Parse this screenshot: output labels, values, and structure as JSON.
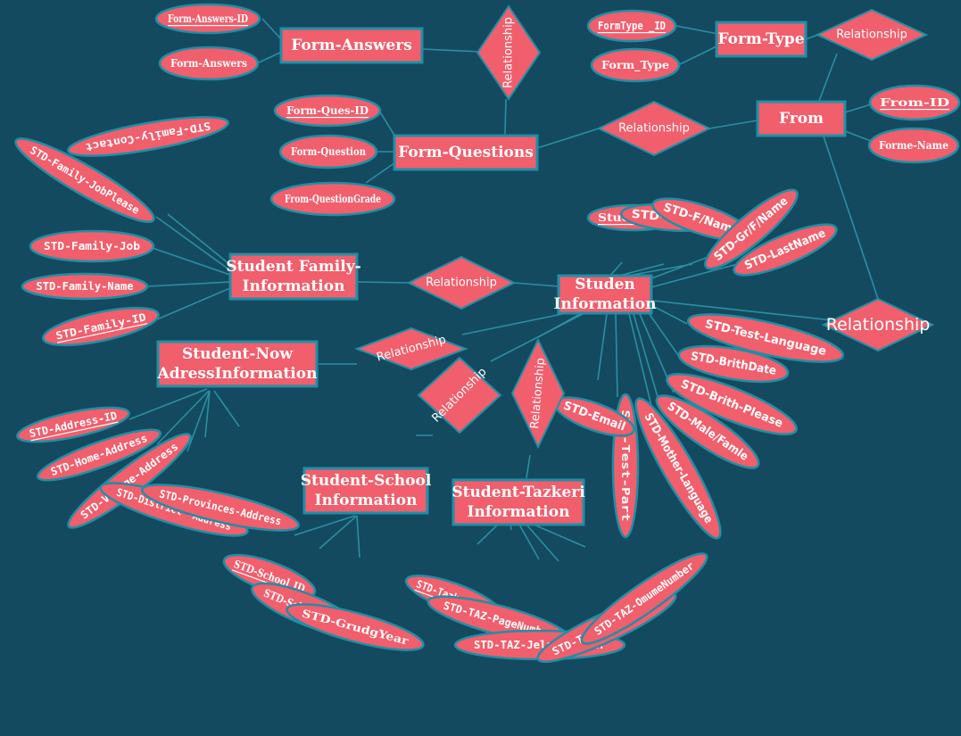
{
  "entities": [
    {
      "id": "form_answers",
      "label": "Form-Answers"
    },
    {
      "id": "form_type",
      "label": "Form-Type"
    },
    {
      "id": "from",
      "label": "From"
    },
    {
      "id": "form_questions",
      "label": "Form-Questions"
    },
    {
      "id": "student_family",
      "label": "Student Family-\nInformation"
    },
    {
      "id": "studen_info",
      "label": "Studen\nInformation"
    },
    {
      "id": "student_now",
      "label": "Student-Now\nAdressInformation"
    },
    {
      "id": "student_school",
      "label": "Student-School\nInformation"
    },
    {
      "id": "student_tazkeri",
      "label": "Student-Tazkeri\nInformation"
    }
  ],
  "attributes": [
    {
      "id": "form_answers_id",
      "label": "Form-Answers-ID",
      "key": true,
      "entity": "form_answers"
    },
    {
      "id": "form_answers_a",
      "label": "Form-Answers",
      "key": false,
      "entity": "form_answers"
    },
    {
      "id": "formtype_id",
      "label": "FormType _ID",
      "key": true,
      "entity": "form_type"
    },
    {
      "id": "form_type_a",
      "label": "Form_Type",
      "key": false,
      "entity": "form_type"
    },
    {
      "id": "from_id",
      "label": "From-ID",
      "key": true,
      "entity": "from"
    },
    {
      "id": "forme_name",
      "label": "Forme-Name",
      "key": false,
      "entity": "from"
    },
    {
      "id": "form_ques_id",
      "label": "Form-Ques-ID",
      "key": true,
      "entity": "form_questions"
    },
    {
      "id": "form_question",
      "label": "Form-Question",
      "key": false,
      "entity": "form_questions"
    },
    {
      "id": "from_questiongrade",
      "label": "From-QuestionGrade",
      "key": false,
      "entity": "form_questions"
    },
    {
      "id": "std_family_contact",
      "label": "STD-Family-Contact",
      "key": false,
      "entity": "student_family"
    },
    {
      "id": "std_family_jobplease",
      "label": "STD-Family-JobPlease",
      "key": false,
      "entity": "student_family"
    },
    {
      "id": "std_family_job",
      "label": "STD-Family-Job",
      "key": false,
      "entity": "student_family"
    },
    {
      "id": "std_family_name",
      "label": "STD-Family-Name",
      "key": false,
      "entity": "student_family"
    },
    {
      "id": "std_family_id",
      "label": "STD-Family-ID",
      "key": true,
      "entity": "student_family"
    },
    {
      "id": "studen_id",
      "label": "Studen-ID",
      "key": true,
      "entity": "studen_info"
    },
    {
      "id": "std_name",
      "label": "STD-Name",
      "key": false,
      "entity": "studen_info"
    },
    {
      "id": "std_f_name",
      "label": "STD-F/Name",
      "key": false,
      "entity": "studen_info"
    },
    {
      "id": "std_gr_f_name",
      "label": "STD-Gr/F/Name",
      "key": false,
      "entity": "studen_info"
    },
    {
      "id": "std_lastname",
      "label": "STD-LastName",
      "key": false,
      "entity": "studen_info"
    },
    {
      "id": "std_test_language",
      "label": "STD-Test-Language",
      "key": false,
      "entity": "studen_info"
    },
    {
      "id": "std_brithdate",
      "label": "STD-BrithDate",
      "key": false,
      "entity": "studen_info"
    },
    {
      "id": "std_brith_please",
      "label": "STD-Brith-Please",
      "key": false,
      "entity": "studen_info"
    },
    {
      "id": "std_male_famle",
      "label": "STD-Male/Famle",
      "key": false,
      "entity": "studen_info"
    },
    {
      "id": "std_mother_language",
      "label": "STD-Mother-Language",
      "key": false,
      "entity": "studen_info"
    },
    {
      "id": "std_test_part",
      "label": "STD-Test-Part",
      "key": false,
      "entity": "studen_info"
    },
    {
      "id": "std_email",
      "label": "STD-Email",
      "key": false,
      "entity": "studen_info"
    },
    {
      "id": "std_address_id",
      "label": "STD-Address-ID",
      "key": true,
      "entity": "student_now"
    },
    {
      "id": "std_home_address",
      "label": "STD-Home-Address",
      "key": false,
      "entity": "student_now"
    },
    {
      "id": "std_vilage_address",
      "label": "STD-Vilage-Address",
      "key": false,
      "entity": "student_now"
    },
    {
      "id": "std_district_address",
      "label": "STD-District -Address",
      "key": false,
      "entity": "student_now"
    },
    {
      "id": "std_provinces_address",
      "label": "STD-Provinces-Address",
      "key": false,
      "entity": "student_now"
    },
    {
      "id": "std_school_id",
      "label": "STD-School_ID",
      "key": true,
      "entity": "student_school"
    },
    {
      "id": "std_school_name",
      "label": "STD-School-Name",
      "key": false,
      "entity": "student_school"
    },
    {
      "id": "std_grudgeyear",
      "label": "STD-GrudgYear",
      "key": false,
      "entity": "student_school"
    },
    {
      "id": "std_tazkeri_id",
      "label": "STD-Tazkeri-ID",
      "key": true,
      "entity": "student_tazkeri"
    },
    {
      "id": "std_taz_pagenumber",
      "label": "STD-TAZ-PageNumber",
      "key": false,
      "entity": "student_tazkeri"
    },
    {
      "id": "std_taz_jeladenumber",
      "label": "STD-TAZ-JeladeNumber",
      "key": false,
      "entity": "student_tazkeri"
    },
    {
      "id": "std_taz_savenumber",
      "label": "STD-TAZ-SaveNumber",
      "key": false,
      "entity": "student_tazkeri"
    },
    {
      "id": "std_taz_omumenumber",
      "label": "STD-TAZ-OmumeNumber",
      "key": false,
      "entity": "student_tazkeri"
    }
  ],
  "relationships": [
    {
      "id": "rel_answers_questions",
      "label": "Relationship",
      "between": [
        "form_answers",
        "form_questions"
      ]
    },
    {
      "id": "rel_formtype_from",
      "label": "Relationship",
      "between": [
        "form_type",
        "from"
      ]
    },
    {
      "id": "rel_questions_from",
      "label": "Relationship",
      "between": [
        "form_questions",
        "from"
      ]
    },
    {
      "id": "rel_from_student",
      "label": "Relationship",
      "between": [
        "from",
        "studen_info"
      ]
    },
    {
      "id": "rel_family_student",
      "label": "Relationship",
      "between": [
        "student_family",
        "studen_info"
      ]
    },
    {
      "id": "rel_now_student",
      "label": "Relationship",
      "between": [
        "student_now",
        "studen_info"
      ]
    },
    {
      "id": "rel_school_student",
      "label": "Relationship",
      "between": [
        "student_school",
        "studen_info"
      ]
    },
    {
      "id": "rel_tazkeri_student",
      "label": "Relationship",
      "between": [
        "student_tazkeri",
        "studen_info"
      ]
    }
  ],
  "colors": {
    "background": "#134a5f",
    "shape_fill": "#f15e6c",
    "shape_stroke": "#1f8fa6",
    "connector": "#2a8fa4",
    "text": "#ffffff"
  }
}
